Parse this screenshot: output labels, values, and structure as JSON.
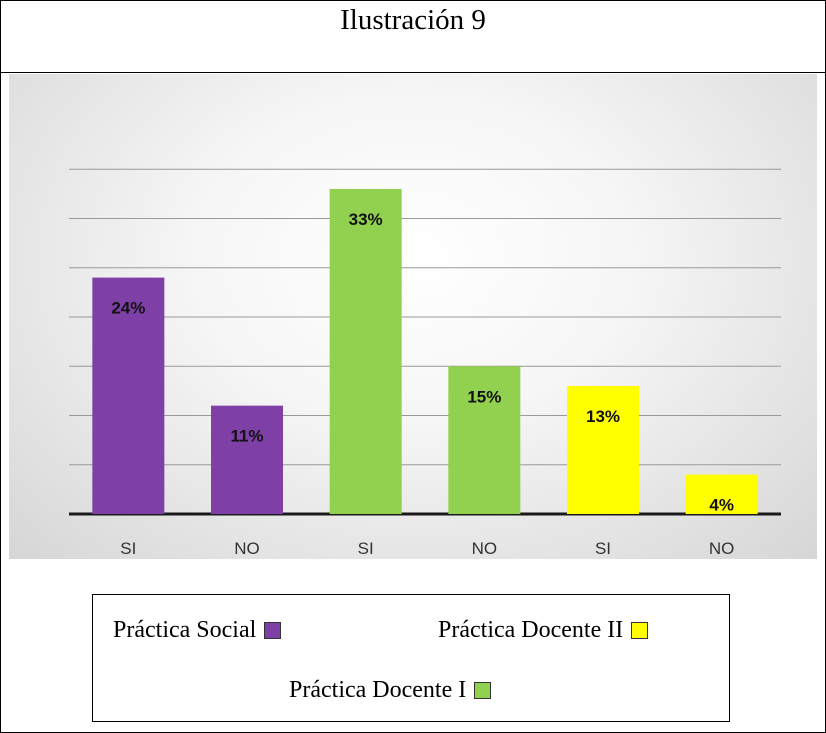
{
  "title": "Ilustración 9",
  "colors": {
    "social": "#7e3fa6",
    "docente1": "#92d050",
    "docente2": "#ffff00",
    "grid": "#9a9a9a"
  },
  "chart_data": {
    "type": "bar",
    "categories": [
      "SI",
      "NO",
      "SI",
      "NO",
      "SI",
      "NO"
    ],
    "values": [
      24,
      11,
      33,
      15,
      13,
      4
    ],
    "value_labels": [
      "24%",
      "11%",
      "33%",
      "15%",
      "13%",
      "4%"
    ],
    "bar_groups": [
      "social",
      "social",
      "docente1",
      "docente1",
      "docente2",
      "docente2"
    ],
    "ylim": [
      0,
      35
    ],
    "grid": true
  },
  "legend": {
    "social": "Práctica Social",
    "docente2": "Práctica Docente II",
    "docente1": "Práctica Docente I"
  }
}
